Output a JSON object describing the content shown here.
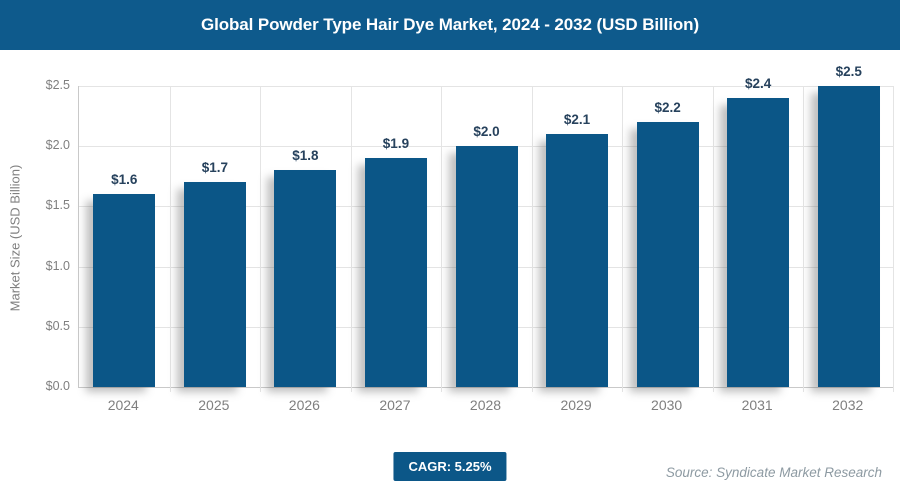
{
  "header": {
    "title": "Global Powder Type Hair Dye Market, 2024 - 2032 (USD Billion)"
  },
  "chart_data": {
    "type": "bar",
    "title": "Global Powder Type Hair Dye Market, 2024 - 2032 (USD Billion)",
    "categories": [
      "2024",
      "2025",
      "2026",
      "2027",
      "2028",
      "2029",
      "2030",
      "2031",
      "2032"
    ],
    "values": [
      1.6,
      1.7,
      1.8,
      1.9,
      2.0,
      2.1,
      2.2,
      2.4,
      2.5
    ],
    "bar_labels": [
      "$1.6",
      "$1.7",
      "$1.8",
      "$1.9",
      "$2.0",
      "$2.1",
      "$2.2",
      "$2.4",
      "$2.5"
    ],
    "xlabel": "",
    "ylabel": "Market Size (USD Billion)",
    "ylim": [
      0,
      2.5
    ],
    "y_ticks": [
      0.0,
      0.5,
      1.0,
      1.5,
      2.0,
      2.5
    ],
    "y_tick_labels": [
      "$0.0",
      "$0.5",
      "$1.0",
      "$1.5",
      "$2.0",
      "$2.5"
    ],
    "grid": true,
    "legend": false,
    "annotations": [
      "CAGR: 5.25%"
    ]
  },
  "footer": {
    "cagr_label": "CAGR: 5.25%",
    "source": "Source: Syndicate Market Research"
  },
  "colors": {
    "header_bg": "#0e5a8c",
    "bar": "#0b5687",
    "bar_label": "#27425d",
    "axis_text": "#7f7f7f",
    "gridline": "#e4e4e4",
    "badge_bg": "#0c5788",
    "source_text": "#8d9aa2"
  }
}
